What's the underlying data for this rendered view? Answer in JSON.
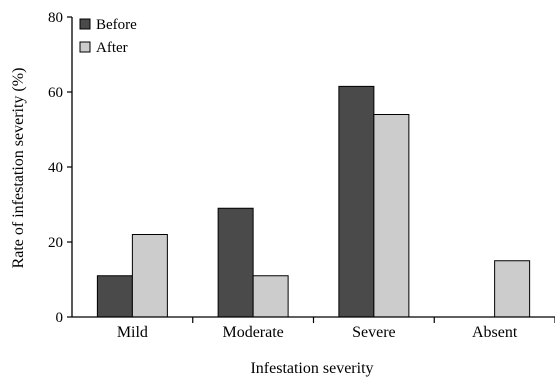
{
  "chart_data": {
    "type": "bar",
    "title": "",
    "xlabel": "Infestation severity",
    "ylabel": "Rate of infestation severity (%)",
    "ylim": [
      0,
      80
    ],
    "yticks": [
      0,
      20,
      40,
      60,
      80
    ],
    "categories": [
      "Mild",
      "Moderate",
      "Severe",
      "Absent"
    ],
    "series": [
      {
        "name": "Before",
        "color": "#4a4a4a",
        "values": [
          11,
          29,
          61.5,
          0
        ]
      },
      {
        "name": "After",
        "color": "#cccccc",
        "values": [
          22,
          11,
          54,
          15
        ]
      }
    ],
    "legend": "top-left",
    "grid": false
  }
}
